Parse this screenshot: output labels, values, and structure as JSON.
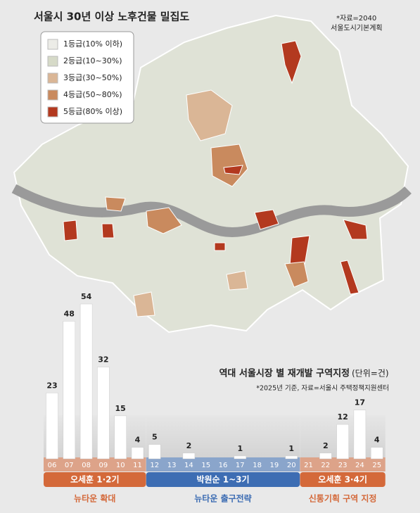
{
  "map": {
    "title": "서울시 30년 이상 노후건물 밀집도",
    "source": [
      "*자료=2040",
      "서울도시기본계획"
    ],
    "legend": [
      {
        "label": "1등급(10% 이하)",
        "color": "#ecece7"
      },
      {
        "label": "2등급(10~30%)",
        "color": "#d6dac8"
      },
      {
        "label": "3등급(30~50%)",
        "color": "#dab696"
      },
      {
        "label": "4등급(50~80%)",
        "color": "#c98a5e"
      },
      {
        "label": "5등급(80% 이상)",
        "color": "#b3391f"
      }
    ]
  },
  "chart_data": {
    "type": "bar",
    "title": "역대 서울시장 별 재개발 구역지정",
    "unit": "(단위=건)",
    "note": "*2025년 기준, 자료=서울시 주택정책지원센터",
    "categories": [
      "06",
      "07",
      "08",
      "09",
      "10",
      "11",
      "12",
      "13",
      "14",
      "15",
      "16",
      "17",
      "18",
      "19",
      "20",
      "21",
      "22",
      "23",
      "24",
      "25"
    ],
    "values": [
      23,
      48,
      54,
      32,
      15,
      4,
      5,
      0,
      2,
      0,
      0,
      1,
      0,
      0,
      1,
      0,
      2,
      12,
      17,
      4
    ],
    "color": "#ffffff",
    "groups": [
      {
        "label": "오세훈 1·2기",
        "caption": "뉴타운 확대",
        "color": "#d4693a"
      },
      {
        "label": "박원순 1~3기",
        "caption": "뉴타운 출구전략",
        "color": "#3d6db3"
      },
      {
        "label": "오세훈 3·4기",
        "caption": "신통기획 구역 지정",
        "color": "#d4693a"
      }
    ]
  }
}
